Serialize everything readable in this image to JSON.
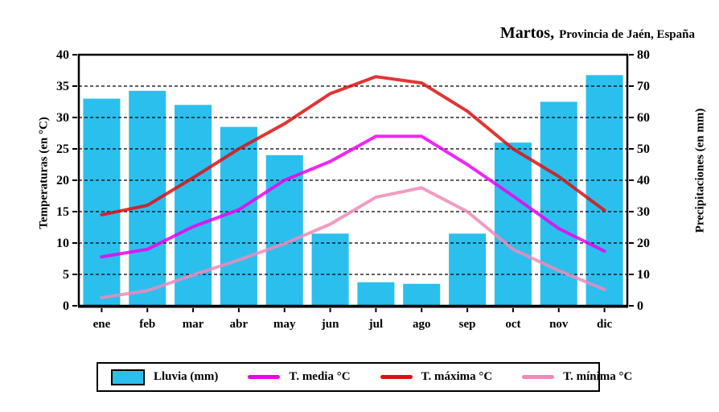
{
  "title": {
    "city": "Martos,",
    "region": "Provincia de Jaén, España"
  },
  "chart_data": {
    "type": "bar",
    "subtype": "climograph: precipitation bars + 3 temperature lines",
    "title": "Martos, Provincia de Jaén, España",
    "categories": [
      "ene",
      "feb",
      "mar",
      "abr",
      "may",
      "jun",
      "jul",
      "ago",
      "sep",
      "oct",
      "nov",
      "dic"
    ],
    "left_axis": {
      "label": "Temperaturas (en °C)",
      "min": 0,
      "max": 40,
      "step": 5
    },
    "right_axis": {
      "label": "Precipitaciones (en mm)",
      "min": 0,
      "max": 80,
      "step": 10
    },
    "grid": "horizontal dashed black lines every 5 °C / 10 mm",
    "legend_position": "bottom",
    "series": [
      {
        "name": "Lluvia (mm)",
        "type": "bar",
        "axis": "right",
        "color": "#2bbfee",
        "values": [
          66,
          68.5,
          64,
          57,
          48,
          23,
          7.5,
          7,
          23,
          52,
          65,
          73.5
        ]
      },
      {
        "name": "T. media °C",
        "type": "line",
        "axis": "left",
        "color": "#ee00ee",
        "values": [
          7.8,
          9,
          12.6,
          15.3,
          20,
          23,
          27,
          27,
          22.5,
          17.5,
          12.3,
          8.7
        ]
      },
      {
        "name": "T. máxima °C",
        "type": "line",
        "axis": "left",
        "color": "#dd1111",
        "values": [
          14.5,
          16,
          20.4,
          25,
          29,
          33.8,
          36.5,
          35.5,
          31,
          25,
          20.6,
          15.2
        ]
      },
      {
        "name": "T. mínima °C",
        "type": "line",
        "axis": "left",
        "color": "#f08ab8",
        "values": [
          1.3,
          2.4,
          4.9,
          7.3,
          9.9,
          13,
          17.3,
          18.8,
          15,
          9,
          5.6,
          2.6
        ]
      }
    ]
  }
}
